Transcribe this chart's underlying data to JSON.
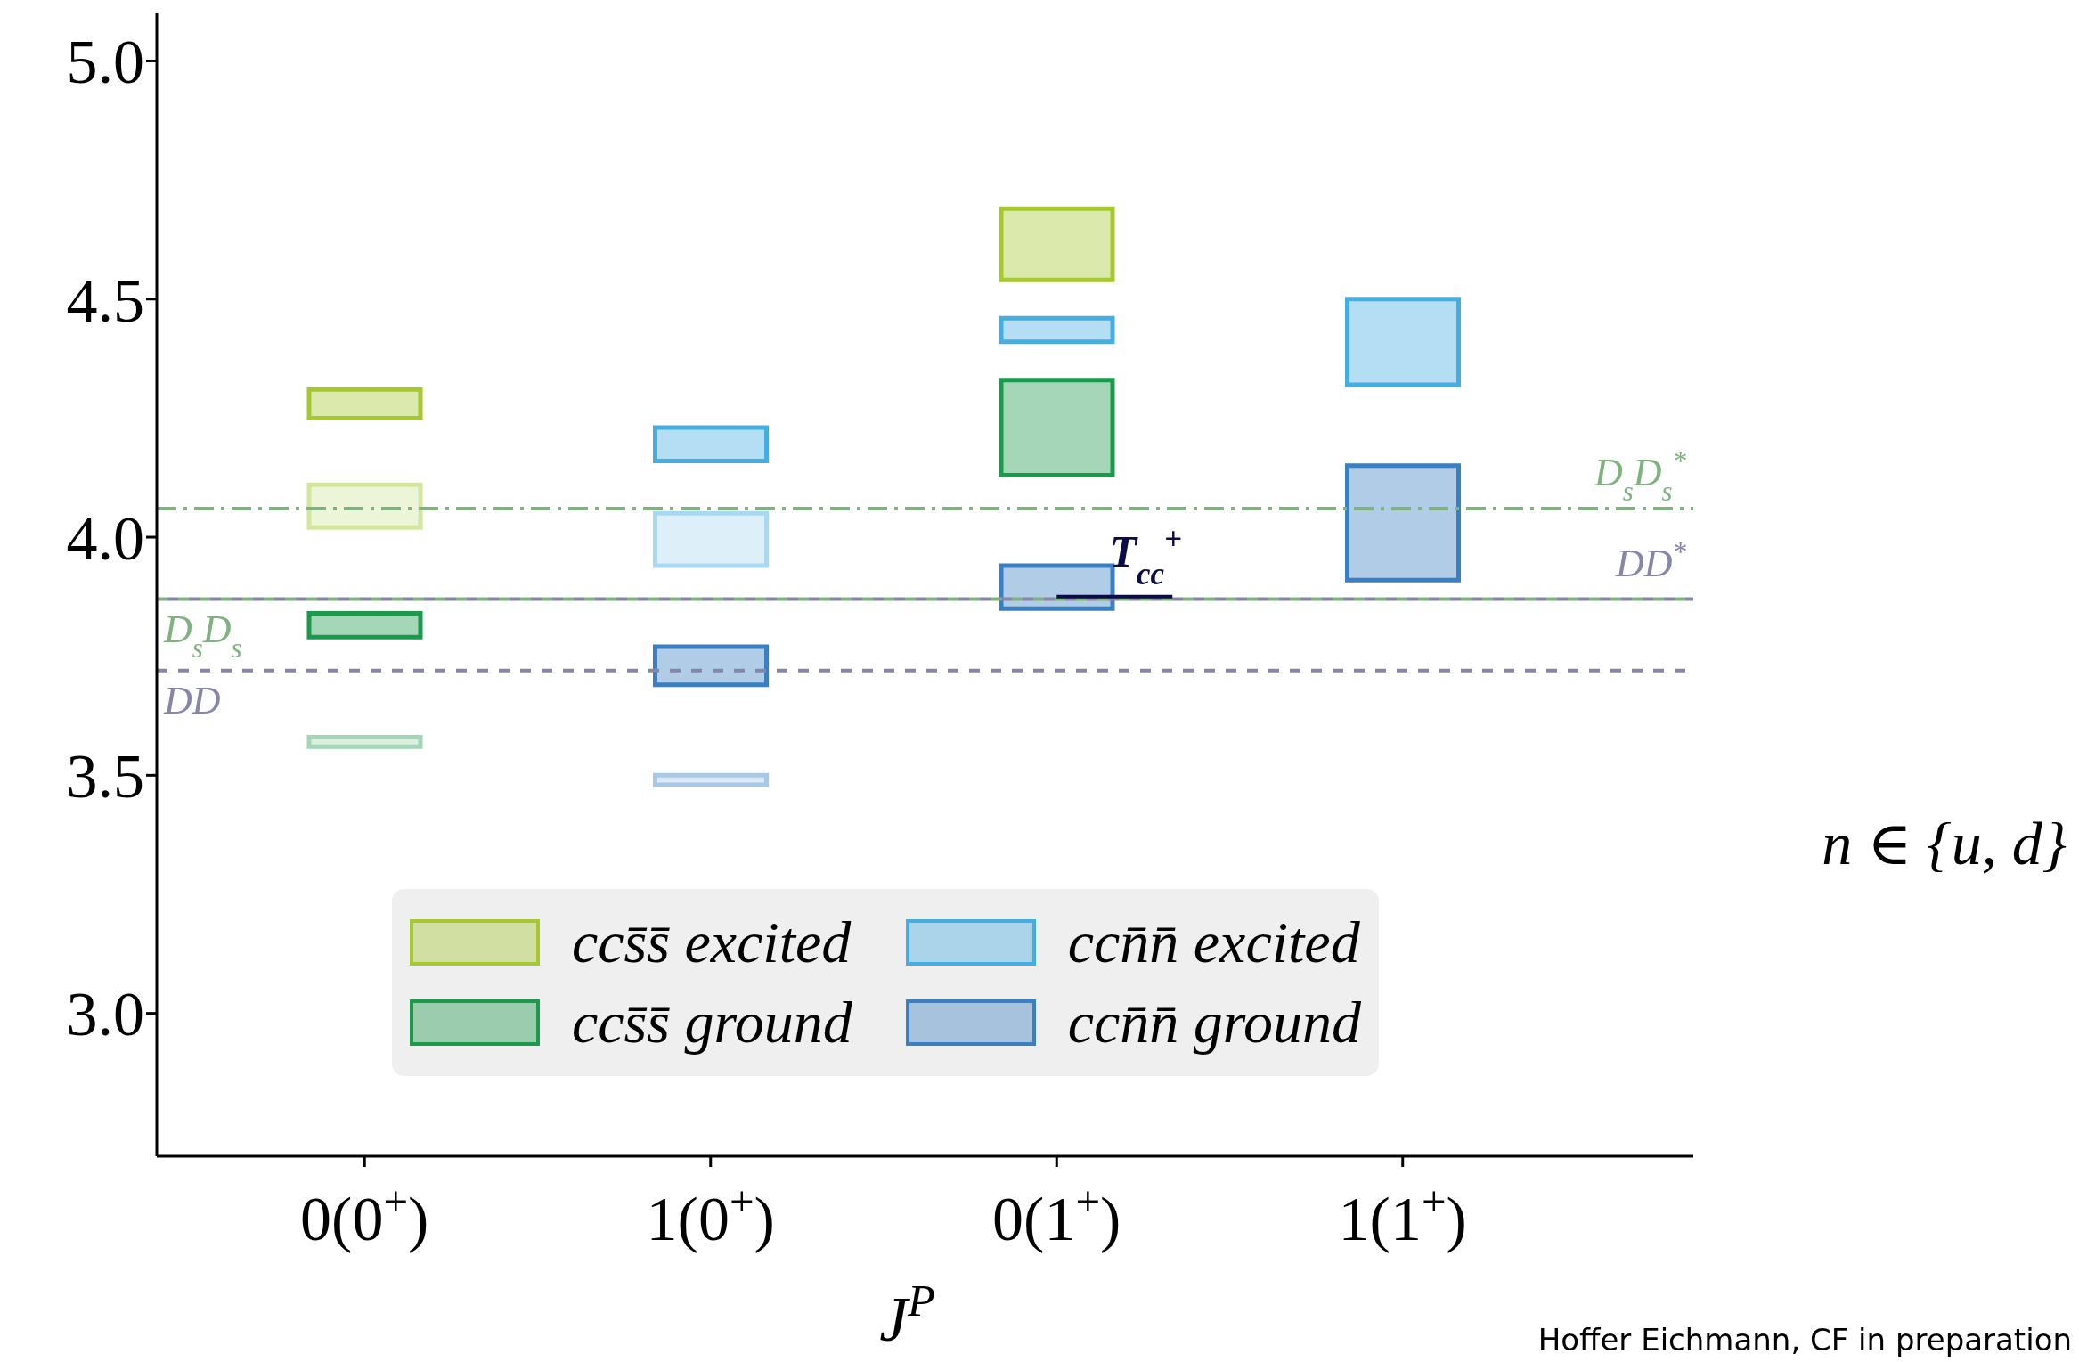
{
  "chart_data": {
    "type": "bar",
    "xlabel": "J$^{P}$",
    "categories": [
      "0(0$^{+}$)",
      "1(0$^{+}$)",
      "0(1$^{+}$)",
      "1(1$^{+}$)"
    ],
    "ylim": [
      2.7,
      5.1
    ],
    "yticks": [
      {
        "value": 3,
        "label": "3.0"
      },
      {
        "value": 3.5,
        "label": "3.5"
      },
      {
        "value": 4,
        "label": "4.0"
      },
      {
        "value": 4.5,
        "label": "4.5"
      },
      {
        "value": 5,
        "label": "5.0"
      }
    ],
    "legend": "bottom",
    "series": [
      {
        "name": "ccs̄s̄ excited",
        "color": "#a5c832",
        "base": [
          4.02,
          null,
          4.54,
          null
        ],
        "values": [
          0.09,
          null,
          0.15,
          null
        ],
        "colors": [
          "#d3e6a0",
          null,
          "#a5c832",
          null
        ]
      },
      {
        "name": "ccs̄s̄ ground",
        "color": "#1c9a4c",
        "base": [
          3.79,
          null,
          4.13,
          null
        ],
        "values": [
          0.05,
          null,
          0.2,
          null
        ]
      },
      {
        "name": "ccn̄n̄ excited",
        "color": "#44ade2",
        "base": [
          null,
          3.94,
          4.41,
          4.32
        ],
        "values": [
          null,
          0.11,
          0.05,
          0.18
        ],
        "colors": [
          null,
          "#a9d9f2",
          "#44ade2",
          "#44ade2"
        ]
      },
      {
        "name": "ccn̄n̄ ground",
        "color": "#3a7fc1",
        "base": [
          null,
          3.69,
          3.85,
          3.91
        ],
        "values": [
          null,
          0.08,
          0.09,
          0.24
        ]
      },
      {
        "color": "#a5c832",
        "base": [
          4.25,
          4.16,
          null,
          null
        ],
        "values": [
          0.06,
          0.07,
          null,
          null
        ],
        "colors": [
          "#a5c832",
          "#44ade2",
          null,
          null
        ]
      },
      {
        "color": "#a3d5b6",
        "base": [
          3.56,
          3.48,
          null,
          null
        ],
        "values": [
          0.02,
          0.02,
          null,
          null
        ],
        "colors": [
          "#a3d5b6",
          "#a9c8e6",
          null,
          null
        ]
      }
    ],
    "ref_lines": [
      {
        "axis": "y",
        "value": 3.87,
        "label": "D$_{s}$D$_{s}$",
        "color": "#7fb27f",
        "line_style": "dashed"
      },
      {
        "axis": "y",
        "value": 3.87,
        "label": "DD$^{*}$",
        "color": "#8586a8",
        "line_style": "dashed"
      },
      {
        "axis": "y",
        "value": 4.06,
        "label": "D$_{s}$D$_{s}$$^{*}$",
        "color": "#7fb27f",
        "line_style": "dashdot"
      },
      {
        "axis": "y",
        "value": 3.72,
        "label": "DD",
        "color": "#8586a8",
        "line_style": "dashed"
      }
    ],
    "annotations": [
      "n ∈ {u, d}",
      {
        "text": "T$_{cc}$$^{+}$",
        "x": "0(1$^{+}$)",
        "y": 3.875
      },
      "Hoffer Eichmann, CF in preparation"
    ]
  }
}
